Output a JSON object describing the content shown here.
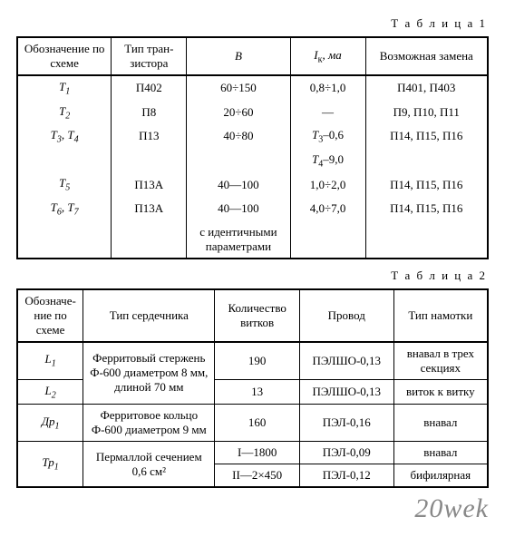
{
  "captions": {
    "table1": "Т а б л и ц а 1",
    "table2": "Т а б л и ц а 2"
  },
  "watermark": "20wek",
  "table1": {
    "headers": {
      "col1": "Обозначение по схеме",
      "col2": "Тип тран­зистора",
      "col3": "B",
      "col4_pre": "I",
      "col4_sub": "к",
      "col4_suffix": ", ма",
      "col5": "Возможная замена"
    },
    "rows": [
      {
        "a_pre": "T",
        "a_sub": "1",
        "b": "П402",
        "c": "60÷150",
        "d": "0,8÷1,0",
        "e": "П401, П403"
      },
      {
        "a_pre": "T",
        "a_sub": "2",
        "b": "П8",
        "c": "20÷60",
        "d": "—",
        "e": "П9, П10, П11"
      },
      {
        "a_pre": "T",
        "a_sub": "3, T4",
        "a_compound": true,
        "a1_pre": "T",
        "a1_sub": "3",
        "a_sep": ", ",
        "a2_pre": "T",
        "a2_sub": "4",
        "b": "П13",
        "c": "40÷80",
        "d_pre": "T",
        "d_sub": "3",
        "d_suffix": "–0,6",
        "e": "П14, П15, П16"
      },
      {
        "a_empty": true,
        "b": "",
        "c": "",
        "d_pre": "T",
        "d_sub": "4",
        "d_suffix": "–9,0",
        "e": ""
      },
      {
        "a_pre": "T",
        "a_sub": "5",
        "b": "П13А",
        "c": "40—100",
        "d": "1,0÷2,0",
        "e": "П14, П15, П16"
      },
      {
        "a_compound": true,
        "a1_pre": "T",
        "a1_sub": "6",
        "a_sep": ", ",
        "a2_pre": "T",
        "a2_sub": "7",
        "b": "П13А",
        "c": "40—100",
        "d": "4,0÷7,0",
        "e": "П14, П15, П16"
      },
      {
        "a_empty": true,
        "b": "",
        "c": "с идентичными параметрами",
        "d": "",
        "e": ""
      }
    ]
  },
  "table2": {
    "headers": {
      "col1": "Обозначе­ние по схеме",
      "col2": "Тип сердечника",
      "col3": "Количество витков",
      "col4": "Провод",
      "col5": "Тип намотки"
    },
    "rows": [
      {
        "a_pre": "L",
        "a_sub": "1",
        "b": "Ферритовый стер­жень Ф-600 диамет­ром 8 мм, длиной 70 мм",
        "b_rowspan": 2,
        "c": "190",
        "d": "ПЭЛШО-0,13",
        "e": "внавал в трех секциях"
      },
      {
        "a_pre": "L",
        "a_sub": "2",
        "c": "13",
        "d": "ПЭЛШО-0,13",
        "e": "виток к витку"
      },
      {
        "a_pre": "Др",
        "a_sub": "1",
        "b": "Ферритовое кольцо Ф-600 диаметром 9 мм",
        "c": "160",
        "d": "ПЭЛ-0,16",
        "e": "внавал"
      },
      {
        "a_pre": "Тр",
        "a_sub": "1",
        "b": "Пермаллой сечени­ем 0,6 см²",
        "b_rowspan": 2,
        "a_rowspan": 2,
        "c": "I—1800",
        "d": "ПЭЛ-0,09",
        "e": "внавал"
      },
      {
        "c": "II—2×450",
        "d": "ПЭЛ-0,12",
        "e": "бифилярная"
      }
    ]
  }
}
